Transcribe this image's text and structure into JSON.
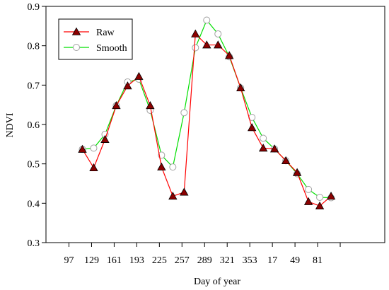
{
  "chart_data": {
    "type": "line",
    "xlabel": "Day of year",
    "ylabel": "NDVI",
    "ylim": [
      0.3,
      0.9
    ],
    "y_ticks": [
      "0.3",
      "0.4",
      "0.5",
      "0.6",
      "0.7",
      "0.8",
      "0.9"
    ],
    "x_tick_labels": [
      "97",
      "129",
      "161",
      "193",
      "225",
      "257",
      "289",
      "321",
      "353",
      "17",
      "49",
      "81"
    ],
    "legend_position": "top-left",
    "grid": false,
    "series": [
      {
        "name": "Raw",
        "color": "#ff0000",
        "marker": "filled-triangle",
        "marker_fill": "#8b0000",
        "values": [
          0.537,
          0.49,
          0.562,
          0.648,
          0.698,
          0.722,
          0.648,
          0.492,
          0.418,
          0.428,
          0.83,
          0.802,
          0.802,
          0.775,
          0.693,
          0.592,
          0.54,
          0.538,
          0.508,
          0.478,
          0.404,
          0.393,
          0.418
        ]
      },
      {
        "name": "Smooth",
        "color": "#00e000",
        "marker": "open-circle",
        "marker_fill": "#ffffff",
        "values": [
          0.537,
          0.54,
          0.575,
          0.648,
          0.708,
          0.715,
          0.636,
          0.522,
          0.492,
          0.63,
          0.795,
          0.865,
          0.83,
          0.772,
          0.693,
          0.618,
          0.565,
          0.538,
          0.508,
          0.475,
          0.435,
          0.415,
          0.414
        ]
      }
    ]
  }
}
